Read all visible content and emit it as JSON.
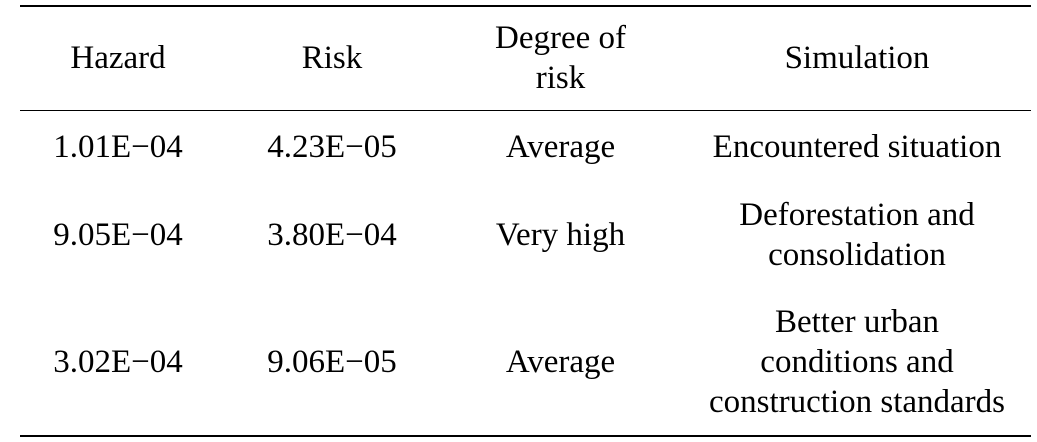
{
  "table": {
    "headers": [
      "Hazard",
      "Risk",
      "Degree of risk",
      "Simulation"
    ],
    "header_lines": {
      "degree": [
        "Degree of",
        "risk"
      ]
    },
    "rows": [
      {
        "hazard": "1.01E−04",
        "risk": "4.23E−05",
        "degree": "Average",
        "simulation_lines": [
          "Encountered  situation"
        ]
      },
      {
        "hazard": "9.05E−04",
        "risk": "3.80E−04",
        "degree": "Very high",
        "simulation_lines": [
          "Deforestation  and",
          "consolidation"
        ]
      },
      {
        "hazard": "3.02E−04",
        "risk": "9.06E−05",
        "degree": "Average",
        "simulation_lines": [
          "Better urban",
          "conditions and",
          "construction standards"
        ]
      }
    ]
  }
}
